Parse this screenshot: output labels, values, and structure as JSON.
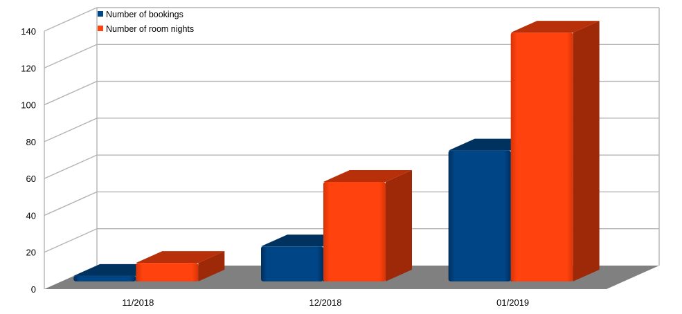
{
  "chart_data": {
    "type": "bar",
    "categories": [
      "11/2018",
      "12/2018",
      "01/2019"
    ],
    "series": [
      {
        "name": "Number of bookings",
        "values": [
          3,
          19,
          71
        ],
        "color": "#004586"
      },
      {
        "name": "Number of room nights",
        "values": [
          10,
          54,
          135
        ],
        "color": "#ff420e"
      }
    ],
    "ylim": [
      0,
      140
    ],
    "yticks": [
      0,
      20,
      40,
      60,
      80,
      100,
      120,
      140
    ],
    "grid": true,
    "legend_position": "top-left",
    "three_d": true,
    "floor_color": "#808080"
  }
}
